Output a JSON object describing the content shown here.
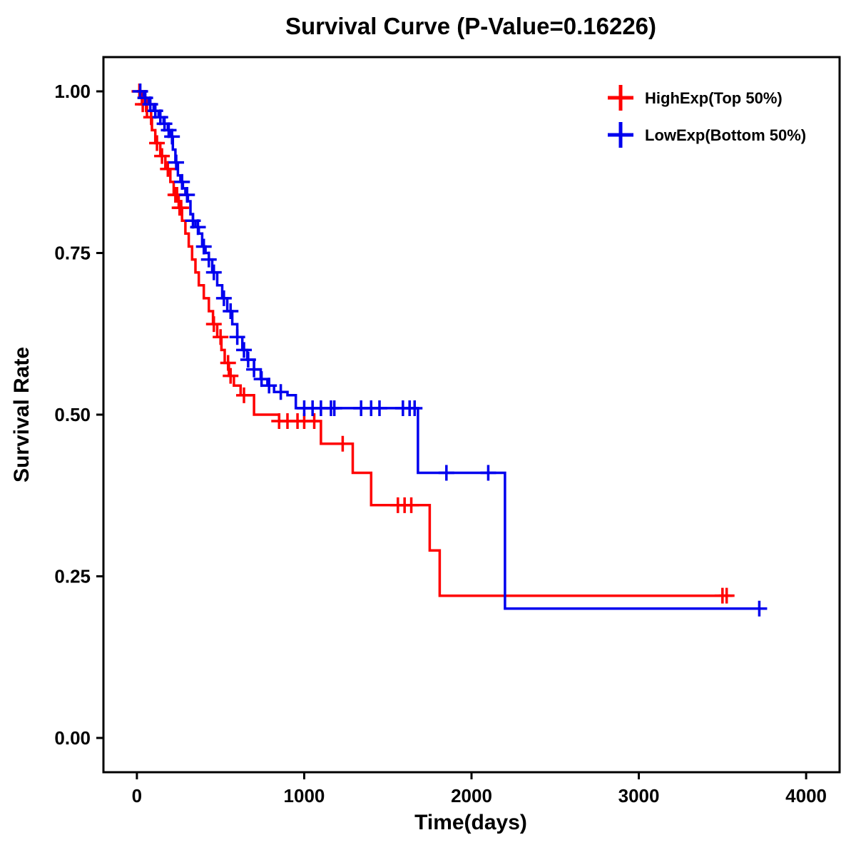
{
  "chart_data": {
    "type": "line",
    "subtype": "kaplan-meier-step-survival",
    "title": "Survival Curve (P-Value=0.16226)",
    "xlabel": "Time(days)",
    "ylabel": "Survival Rate",
    "p_value": "0.16226",
    "grid": false,
    "legend_position": "top-right-inside",
    "xlim": [
      -200,
      4200
    ],
    "ylim": [
      -0.053,
      1.053
    ],
    "x_ticks": {
      "values": [
        0,
        1000,
        2000,
        3000,
        4000
      ],
      "labels": [
        "0",
        "1000",
        "2000",
        "3000",
        "4000"
      ]
    },
    "y_ticks": {
      "values": [
        0.0,
        0.25,
        0.5,
        0.75,
        1.0
      ],
      "labels": [
        "0.00",
        "0.25",
        "0.50",
        "0.75",
        "1.00"
      ]
    },
    "series": [
      {
        "name": "HighExp(Top 50%)",
        "color": "#ff0000",
        "end_time": 3560,
        "steps": [
          [
            0,
            1.0
          ],
          [
            30,
            0.98
          ],
          [
            60,
            0.96
          ],
          [
            90,
            0.94
          ],
          [
            110,
            0.92
          ],
          [
            140,
            0.9
          ],
          [
            170,
            0.88
          ],
          [
            200,
            0.86
          ],
          [
            220,
            0.84
          ],
          [
            250,
            0.82
          ],
          [
            270,
            0.8
          ],
          [
            290,
            0.78
          ],
          [
            310,
            0.76
          ],
          [
            330,
            0.74
          ],
          [
            350,
            0.72
          ],
          [
            370,
            0.7
          ],
          [
            400,
            0.68
          ],
          [
            430,
            0.66
          ],
          [
            455,
            0.64
          ],
          [
            480,
            0.62
          ],
          [
            505,
            0.6
          ],
          [
            525,
            0.58
          ],
          [
            550,
            0.56
          ],
          [
            580,
            0.545
          ],
          [
            620,
            0.53
          ],
          [
            700,
            0.5
          ],
          [
            850,
            0.49
          ],
          [
            1100,
            0.455
          ],
          [
            1290,
            0.41
          ],
          [
            1400,
            0.36
          ],
          [
            1750,
            0.29
          ],
          [
            1810,
            0.22
          ]
        ],
        "censor_times": [
          15,
          35,
          55,
          85,
          120,
          150,
          185,
          230,
          240,
          255,
          265,
          460,
          500,
          545,
          560,
          640,
          850,
          900,
          960,
          1000,
          1060,
          1230,
          1560,
          1600,
          1640,
          3500,
          3525
        ]
      },
      {
        "name": "LowExp(Bottom 50%)",
        "color": "#0000ee",
        "end_time": 3730,
        "steps": [
          [
            0,
            1.0
          ],
          [
            40,
            0.99
          ],
          [
            70,
            0.98
          ],
          [
            100,
            0.97
          ],
          [
            130,
            0.96
          ],
          [
            160,
            0.95
          ],
          [
            185,
            0.94
          ],
          [
            200,
            0.93
          ],
          [
            215,
            0.91
          ],
          [
            230,
            0.89
          ],
          [
            245,
            0.87
          ],
          [
            260,
            0.86
          ],
          [
            275,
            0.85
          ],
          [
            290,
            0.84
          ],
          [
            305,
            0.83
          ],
          [
            320,
            0.81
          ],
          [
            335,
            0.8
          ],
          [
            350,
            0.79
          ],
          [
            370,
            0.78
          ],
          [
            390,
            0.76
          ],
          [
            410,
            0.75
          ],
          [
            430,
            0.74
          ],
          [
            450,
            0.72
          ],
          [
            480,
            0.7
          ],
          [
            510,
            0.68
          ],
          [
            540,
            0.66
          ],
          [
            570,
            0.64
          ],
          [
            600,
            0.62
          ],
          [
            630,
            0.6
          ],
          [
            660,
            0.585
          ],
          [
            700,
            0.57
          ],
          [
            740,
            0.555
          ],
          [
            780,
            0.545
          ],
          [
            820,
            0.535
          ],
          [
            900,
            0.53
          ],
          [
            950,
            0.51
          ],
          [
            1680,
            0.41
          ],
          [
            2200,
            0.2
          ]
        ],
        "censor_times": [
          20,
          50,
          80,
          110,
          140,
          165,
          190,
          210,
          235,
          270,
          300,
          335,
          365,
          400,
          430,
          460,
          520,
          560,
          600,
          640,
          665,
          700,
          745,
          790,
          860,
          1000,
          1050,
          1100,
          1160,
          1180,
          1340,
          1400,
          1450,
          1590,
          1630,
          1660,
          1850,
          2100,
          3720
        ]
      }
    ]
  },
  "style": {
    "line_width": 3.5,
    "censor_half_size": 11,
    "censor_stroke": 3.5,
    "axis_color": "#000000"
  }
}
